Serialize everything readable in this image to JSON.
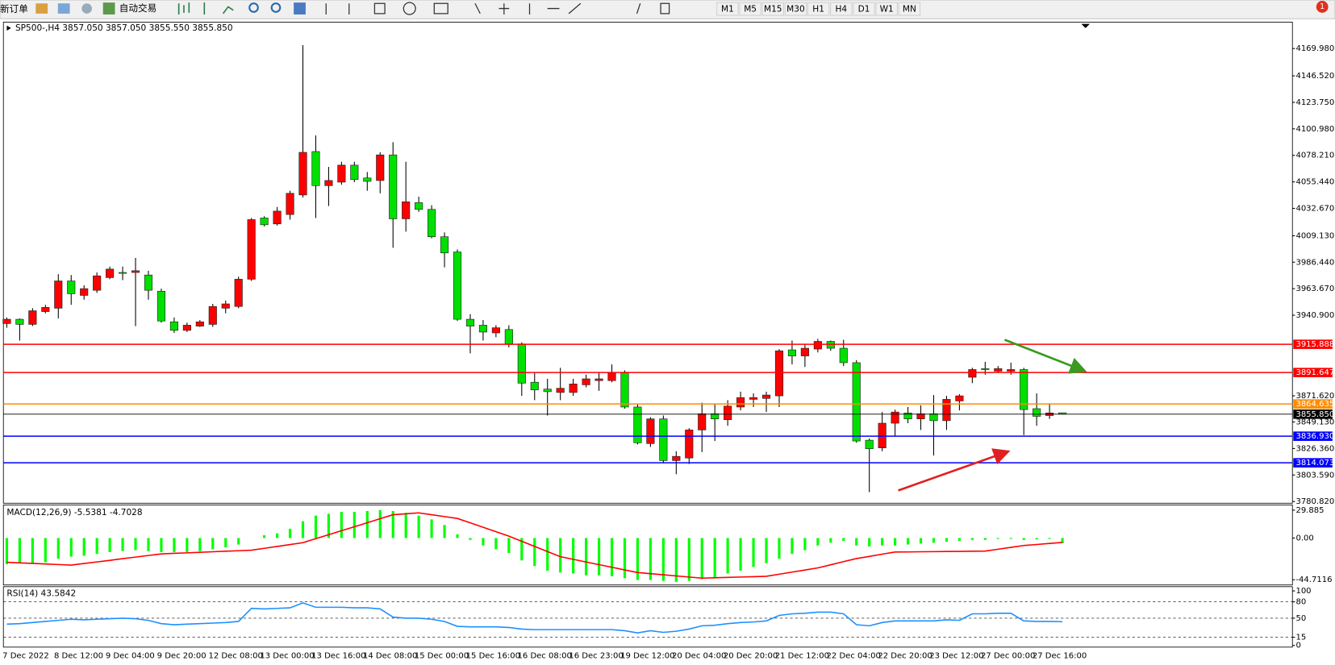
{
  "toolbar": {
    "new_order": "新订单",
    "auto_trading": "自动交易",
    "timeframes": [
      "M1",
      "M5",
      "M15",
      "M30",
      "H1",
      "H4",
      "D1",
      "W1",
      "MN"
    ],
    "notifications": 1
  },
  "chart_data": [
    {
      "type": "candlestick",
      "title": "SP500-,H4 3857.050 3857.050 3855.550 3855.850",
      "categories": [
        "7 Dec 2022",
        null,
        null,
        null,
        "8 Dec 12:00",
        null,
        null,
        null,
        "9 Dec 04:00",
        null,
        null,
        null,
        "9 Dec 20:00",
        null,
        null,
        null,
        "12 Dec 08:00",
        null,
        null,
        null,
        "13 Dec 00:00",
        null,
        null,
        null,
        "13 Dec 16:00",
        null,
        null,
        null,
        "14 Dec 08:00",
        null,
        null,
        null,
        "15 Dec 00:00",
        null,
        null,
        null,
        "15 Dec 16:00",
        null,
        null,
        null,
        "16 Dec 08:00",
        null,
        null,
        null,
        "16 Dec 23:00",
        null,
        null,
        null,
        "19 Dec 12:00",
        null,
        null,
        null,
        "20 Dec 04:00",
        null,
        null,
        null,
        "20 Dec 20:00",
        null,
        null,
        null,
        "21 Dec 12:00",
        null,
        null,
        null,
        "22 Dec 04:00",
        null,
        null,
        null,
        "22 Dec 20:00",
        null,
        null,
        null,
        "23 Dec 12:00",
        null,
        null,
        null,
        "27 Dec 00:00",
        null,
        null,
        null,
        "27 Dec 16:00",
        null,
        null
      ],
      "open": [
        3933.7,
        3937.4,
        3933.0,
        3944.0,
        3946.9,
        3970.3,
        3957.9,
        3962.3,
        3973.2,
        3977.6,
        3977.6,
        3975.4,
        3961.5,
        3935.2,
        3927.9,
        3931.5,
        3933.0,
        3946.9,
        3948.4,
        3971.8,
        4024.4,
        4019.3,
        4027.4,
        4044.2,
        4081.5,
        4052.2,
        4055.2,
        4069.8,
        4058.8,
        4056.6,
        4078.6,
        4023.7,
        4037.6,
        4031.8,
        4008.3,
        3995.2,
        3937.4,
        3932.3,
        3925.7,
        3928.6,
        3916.2,
        3883.3,
        3877.4,
        3874.5,
        3874.5,
        3881.1,
        3884.7,
        3884.7,
        3891.3,
        3862.0,
        3830.6,
        3851.8,
        3816.0,
        3818.2,
        3842.3,
        3856.2,
        3851.1,
        3862.0,
        3868.6,
        3869.4,
        3871.6,
        3911.1,
        3905.9,
        3911.8,
        3918.4,
        3912.5,
        3900.1,
        3833.5,
        3826.9,
        3848.1,
        3856.9,
        3851.8,
        3856.2,
        3850.3,
        3867.2,
        3887.6,
        3895.0,
        3892.8,
        3892.8,
        3894.2,
        3860.6,
        3854.7,
        3857.05
      ],
      "high": [
        3938.9,
        3938.1,
        3946.9,
        3949.8,
        3976.1,
        3975.4,
        3966.6,
        3977.6,
        3982.7,
        3982.7,
        3990.1,
        3979.1,
        3963.7,
        3938.9,
        3934.5,
        3936.7,
        3950.6,
        3953.5,
        3974.0,
        4024.4,
        4025.9,
        4033.9,
        4047.8,
        4172.9,
        4095.4,
        4068.3,
        4072.7,
        4072.7,
        4063.9,
        4080.8,
        4089.5,
        4072.7,
        4042.7,
        4035.4,
        4012.0,
        3997.4,
        3941.8,
        3936.7,
        3932.3,
        3932.3,
        3917.6,
        3891.3,
        3886.2,
        3895.7,
        3886.2,
        3889.8,
        3892.0,
        3898.6,
        3893.5,
        3864.2,
        3853.3,
        3854.7,
        3824.0,
        3843.8,
        3865.7,
        3865.0,
        3867.9,
        3875.2,
        3873.7,
        3875.2,
        3911.8,
        3919.1,
        3916.2,
        3920.6,
        3919.1,
        3919.8,
        3902.3,
        3835.0,
        3857.7,
        3859.8,
        3862.0,
        3863.5,
        3872.3,
        3871.6,
        3873.0,
        3895.7,
        3900.8,
        3897.2,
        3900.1,
        3895.7,
        3873.7,
        3865.0,
        3857.05
      ],
      "low": [
        3930.1,
        3919.1,
        3931.5,
        3942.5,
        3938.1,
        3949.8,
        3954.2,
        3960.1,
        3971.8,
        3971.0,
        3931.5,
        3954.2,
        3934.5,
        3925.7,
        3926.4,
        3930.8,
        3930.8,
        3942.5,
        3946.9,
        3970.3,
        4017.1,
        4017.9,
        4023.0,
        4042.0,
        4024.4,
        4034.7,
        4053.0,
        4055.2,
        4047.8,
        4045.6,
        3998.8,
        4012.7,
        4029.6,
        4006.9,
        3982.0,
        3935.9,
        3908.1,
        3919.1,
        3922.0,
        3913.2,
        3871.6,
        3867.9,
        3854.7,
        3867.9,
        3871.6,
        3878.9,
        3875.9,
        3883.3,
        3860.6,
        3829.9,
        3827.7,
        3814.5,
        3804.3,
        3813.0,
        3823.3,
        3832.8,
        3845.9,
        3859.1,
        3862.0,
        3857.7,
        3862.0,
        3898.6,
        3896.4,
        3908.9,
        3910.3,
        3897.2,
        3831.3,
        3788.9,
        3824.0,
        3837.2,
        3848.1,
        3842.3,
        3820.3,
        3842.3,
        3859.1,
        3882.5,
        3889.8,
        3891.3,
        3889.8,
        3837.9,
        3845.9,
        3851.8,
        3855.55
      ],
      "close": [
        3937.4,
        3933.0,
        3944.7,
        3947.6,
        3970.3,
        3959.3,
        3963.7,
        3974.7,
        3980.5,
        3976.9,
        3979.1,
        3962.3,
        3935.9,
        3927.9,
        3932.3,
        3935.2,
        3948.4,
        3950.6,
        3971.8,
        4023.0,
        4018.6,
        4030.3,
        4045.6,
        4080.8,
        4052.2,
        4056.6,
        4069.8,
        4057.4,
        4055.9,
        4078.6,
        4023.7,
        4038.3,
        4031.8,
        4008.3,
        3994.4,
        3937.4,
        3931.5,
        3926.4,
        3930.1,
        3916.2,
        3882.5,
        3876.7,
        3875.2,
        3878.1,
        3881.8,
        3886.2,
        3886.2,
        3891.3,
        3862.0,
        3831.3,
        3851.8,
        3816.0,
        3819.6,
        3842.3,
        3856.2,
        3851.8,
        3862.8,
        3870.1,
        3870.1,
        3872.3,
        3910.3,
        3905.9,
        3912.5,
        3918.4,
        3912.5,
        3900.1,
        3832.8,
        3826.2,
        3848.1,
        3857.7,
        3851.8,
        3856.2,
        3850.3,
        3868.6,
        3871.6,
        3894.2,
        3894.2,
        3895.0,
        3894.2,
        3859.8,
        3854.0,
        3856.9,
        3855.85
      ],
      "up_color": "#ff0000",
      "down_color": "#00e000",
      "ylim": [
        3779.36,
        4192.66
      ],
      "yticks": [
        {
          "value": 4169.98,
          "label": "4169.980"
        },
        {
          "value": 4146.52,
          "label": "4146.520"
        },
        {
          "value": 4123.75,
          "label": "4123.750"
        },
        {
          "value": 4100.98,
          "label": "4100.980"
        },
        {
          "value": 4078.21,
          "label": "4078.210"
        },
        {
          "value": 4055.44,
          "label": "4055.440"
        },
        {
          "value": 4032.67,
          "label": "4032.670"
        },
        {
          "value": 4009.13,
          "label": "4009.130"
        },
        {
          "value": 3986.44,
          "label": "3986.440"
        },
        {
          "value": 3963.67,
          "label": "3963.670"
        },
        {
          "value": 3940.9,
          "label": "3940.900"
        },
        {
          "value": 3871.62,
          "label": "3871.620"
        },
        {
          "value": 3849.13,
          "label": "3849.130"
        },
        {
          "value": 3826.36,
          "label": "3826.360"
        },
        {
          "value": 3803.59,
          "label": "3803.590"
        },
        {
          "value": 3780.82,
          "label": "3780.820"
        }
      ],
      "lines": [
        {
          "value": 3915.888,
          "color": "#ff0000"
        },
        {
          "value": 3891.647,
          "color": "#ff0000"
        },
        {
          "value": 3864.635,
          "color": "#ff8c00"
        },
        {
          "value": 3855.85,
          "label": "3855.850",
          "color": "#000000"
        },
        {
          "value": 3836.93,
          "label": "3836.930",
          "color": "#0000ff"
        },
        {
          "value": 3814.073,
          "color": "#0000ff"
        }
      ]
    },
    {
      "type": "macd",
      "title": "MACD(12,26,9) -5.5381 -4.7028",
      "series": [
        {
          "color": "#00ff00",
          "values": [
            -28,
            -27,
            -27,
            -26,
            -22,
            -20,
            -19,
            -17,
            -15,
            -14,
            -13,
            -14,
            -15,
            -15,
            -15,
            -14,
            -12,
            -10,
            -7,
            0,
            3,
            5,
            10,
            18,
            24,
            26,
            28,
            28,
            29,
            30,
            29,
            27,
            24,
            20,
            14,
            4,
            -2,
            -8,
            -12,
            -16,
            -24,
            -30,
            -35,
            -37,
            -38,
            -40,
            -40,
            -41,
            -43,
            -45,
            -45,
            -46,
            -47,
            -46,
            -44,
            -42,
            -38,
            -35,
            -31,
            -27,
            -22,
            -17,
            -13,
            -8,
            -5,
            -3,
            -8,
            -9,
            -8,
            -8,
            -7,
            -6,
            -5,
            -4,
            -3,
            -2,
            -2,
            -1,
            -1,
            -2,
            -1.5,
            -1,
            -5.5381
          ]
        },
        {
          "color": "#ff0000",
          "values": [
            -26,
            -26.6,
            -27.2,
            -27.8,
            -28.4,
            -29,
            -27.3,
            -25.6,
            -23.9,
            -22.1,
            -20.4,
            -18.7,
            -17,
            -16.4,
            -15.9,
            -15.3,
            -14.7,
            -14.1,
            -13.6,
            -13,
            -11,
            -9,
            -7,
            -5,
            -0.7,
            3.6,
            7.9,
            12.1,
            16.4,
            20.7,
            25,
            26,
            27,
            25,
            23,
            21,
            16.3,
            11.5,
            6.8,
            2,
            -3.5,
            -9,
            -14.5,
            -20,
            -22.8,
            -25.7,
            -28.5,
            -31.3,
            -34.2,
            -37,
            -38.2,
            -39.4,
            -40.6,
            -41.8,
            -43,
            -42.6,
            -42.2,
            -41.8,
            -41.4,
            -41,
            -38.8,
            -36.5,
            -34.3,
            -32,
            -28.7,
            -25.3,
            -22,
            -19.7,
            -17.3,
            -15,
            -14.9,
            -14.7,
            -14.6,
            -14.4,
            -14.3,
            -14.1,
            -14,
            -12,
            -10,
            -8,
            -6.9,
            -5.8,
            -4.7028
          ]
        }
      ],
      "ylim": [
        -50.3,
        35.5
      ],
      "yticks": [
        29.885,
        {
          "value": 0,
          "label": "0.00"
        },
        -44.7116
      ]
    },
    {
      "type": "line",
      "title": "RSI(14) 43.5842",
      "series": [
        {
          "color": "#1e90ff",
          "values": [
            39,
            40,
            42,
            44,
            46,
            48,
            47,
            48,
            49,
            50,
            49,
            46,
            40,
            38,
            39,
            40,
            41,
            42,
            44,
            68,
            67,
            68,
            69,
            78,
            70,
            70,
            70,
            69,
            69,
            67,
            52,
            50,
            50,
            48,
            44,
            35,
            34,
            34,
            34,
            33,
            30,
            29,
            29,
            29,
            29,
            29,
            29,
            29,
            27,
            23,
            27,
            24,
            26,
            30,
            36,
            37,
            40,
            42,
            43,
            45,
            55,
            58,
            59,
            61,
            61,
            58,
            38,
            36,
            42,
            45,
            45,
            45,
            45,
            47,
            46,
            58,
            58,
            59,
            59,
            45,
            44,
            44,
            43.5842
          ]
        }
      ],
      "ylim": [
        -3.1,
        107.8
      ],
      "yticks": [
        100,
        80,
        50,
        15,
        0
      ],
      "grid": true
    }
  ]
}
